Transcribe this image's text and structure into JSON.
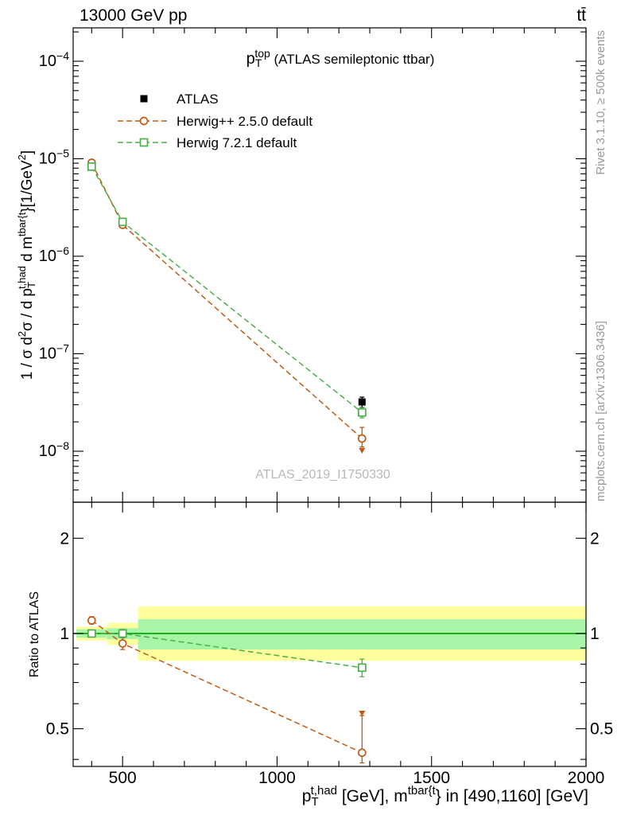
{
  "header": {
    "left": "13000 GeV pp",
    "right": "tt̄"
  },
  "watermark": "ATLAS_2019_I1750330",
  "side_notes": {
    "top": "Rivet 3.1.10, ≥ 500k events",
    "bottom": "mcplots.cern.ch [arXiv:1306.3436]"
  },
  "chart_data": {
    "type": "line",
    "title_text": "p_T^top (ATLAS semileptonic ttbar)",
    "xlabel_text": "p_T^t,had [GeV], m^tbar{t} in [490,1160] [GeV]",
    "ylabel_text": "1 / σ d²σ / d p_T^t,had d m^tbar{t} [1/GeV²]",
    "ratio_ylabel": "Ratio to ATLAS",
    "title_segments": [
      {
        "t": "p"
      },
      {
        "t": "T",
        "s": "sub"
      },
      {
        "t": "top",
        "s": "sup",
        "dx": -9
      },
      {
        "t": " (ATLAS semileptonic ttbar)",
        "fs": 17
      }
    ],
    "xlabel_segments": [
      {
        "t": "p"
      },
      {
        "t": "T",
        "s": "sub"
      },
      {
        "t": "t,had",
        "s": "sup",
        "dx": -10
      },
      {
        "t": " [GeV], m"
      },
      {
        "t": "tbar{t",
        "s": "sup"
      },
      {
        "t": "} in [490,1160] [GeV]"
      }
    ],
    "ylabel_segments": [
      {
        "t": "1 / σ d"
      },
      {
        "t": "2",
        "s": "sup"
      },
      {
        "t": "σ / d p"
      },
      {
        "t": "T",
        "s": "sub"
      },
      {
        "t": "t,had",
        "s": "sup",
        "dx": -9
      },
      {
        "t": " d m"
      },
      {
        "t": "tbar{t",
        "s": "sup"
      },
      {
        "t": "}[1/GeV"
      },
      {
        "t": "2",
        "s": "sup"
      },
      {
        "t": "]"
      }
    ],
    "x_axis": {
      "min": 340,
      "max": 2000,
      "major_ticks": [
        500,
        1000,
        1500,
        2000
      ],
      "minor_step": 100
    },
    "y_axis_main": {
      "scale": "log",
      "min": 3e-09,
      "max": 0.00022,
      "label_exponents": [
        -4,
        -5,
        -6,
        -7,
        -8
      ]
    },
    "y_axis_ratio": {
      "scale": "log",
      "min": 0.38,
      "max": 2.6,
      "major_ticks": [
        0.5,
        1,
        2
      ],
      "minor_ticks": [
        0.4,
        0.6,
        0.7,
        0.8,
        0.9
      ]
    },
    "x": [
      400,
      500,
      1275
    ],
    "series": [
      {
        "name": "ATLAS",
        "kind": "data",
        "color": "#000000",
        "marker": "square-filled",
        "values": [
          8.3e-06,
          2.25e-06,
          3.2e-08
        ],
        "err_frac": [
          [
            0.04,
            0.04
          ],
          [
            0.04,
            0.04
          ],
          [
            0.12,
            0.12
          ]
        ]
      },
      {
        "name": "Herwig++ 2.5.0 default",
        "kind": "mc",
        "color": "#bf5b17",
        "marker": "circle-open",
        "line": "dashed",
        "values": [
          9.1e-06,
          2.1e-06,
          1.35e-08
        ],
        "err_frac": [
          [
            0.04,
            0.04
          ],
          [
            0.05,
            0.05
          ],
          [
            0.18,
            0.3
          ]
        ],
        "ratio": [
          1.1,
          0.93,
          0.42
        ],
        "ratio_err": [
          [
            0.03,
            0.03
          ],
          [
            0.04,
            0.04
          ],
          [
            0.03,
            0.13
          ]
        ]
      },
      {
        "name": "Herwig 7.2.1 default",
        "kind": "mc",
        "color": "#4daf4a",
        "marker": "square-open",
        "line": "dashed",
        "values": [
          8.3e-06,
          2.25e-06,
          2.5e-08
        ],
        "err_frac": [
          [
            0.03,
            0.03
          ],
          [
            0.04,
            0.04
          ],
          [
            0.12,
            0.12
          ]
        ],
        "ratio": [
          1.0,
          1.0,
          0.78
        ],
        "ratio_err": [
          [
            0.02,
            0.02
          ],
          [
            0.03,
            0.03
          ],
          [
            0.05,
            0.05
          ]
        ]
      }
    ],
    "extra_markers": [
      {
        "panel": "main",
        "x": 1275,
        "v": 1.02e-08,
        "shape": "triangle-down",
        "series": 1
      },
      {
        "panel": "ratio",
        "x": 1275,
        "v": 0.56,
        "shape": "triangle-down",
        "series": 1
      }
    ],
    "ratio_bands": {
      "edges": [
        350,
        450,
        550,
        2000
      ],
      "yellow": [
        [
          0.95,
          1.05
        ],
        [
          0.92,
          1.08
        ],
        [
          0.82,
          1.22
        ]
      ],
      "green": [
        [
          0.97,
          1.03
        ],
        [
          0.96,
          1.04
        ],
        [
          0.89,
          1.11
        ]
      ],
      "band_colors": {
        "yellow": "#ffff9d",
        "green": "#a8f5a8",
        "center_line": "#00a000"
      }
    }
  }
}
